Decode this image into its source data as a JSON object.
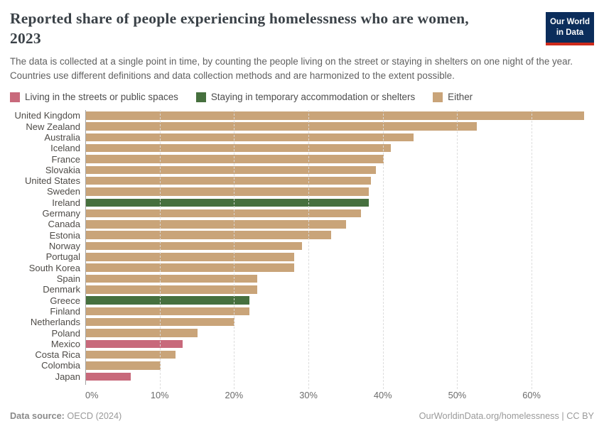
{
  "header": {
    "title": "Reported share of people experiencing homelessness who are women, 2023",
    "subtitle": "The data is collected at a single point in time, by counting the people living on the street or staying in shelters on one night of the year. Countries use different definitions and data collection methods and are harmonized to the extent possible.",
    "logo_line1": "Our World",
    "logo_line2": "in Data"
  },
  "legend": {
    "items": [
      {
        "label": "Living in the streets or public spaces",
        "key": "street"
      },
      {
        "label": "Staying in temporary accommodation or shelters",
        "key": "shelter"
      },
      {
        "label": "Either",
        "key": "either"
      }
    ]
  },
  "colors": {
    "street": "#C8697B",
    "shelter": "#46703E",
    "either": "#C9A479",
    "logo_bg": "#0B2D5B",
    "logo_accent": "#CE2A1B"
  },
  "chart_data": {
    "type": "bar",
    "orientation": "horizontal",
    "title": "Reported share of people experiencing homelessness who are women, 2023",
    "unit": "%",
    "xlabel": "",
    "ylabel": "",
    "xmax": 68.4,
    "grid": true,
    "tick_values": [
      0,
      10,
      20,
      30,
      40,
      50,
      60
    ],
    "tick_labels": [
      "0%",
      "10%",
      "20%",
      "30%",
      "40%",
      "50%",
      "60%"
    ],
    "categories": [
      "United Kingdom",
      "New Zealand",
      "Australia",
      "Iceland",
      "France",
      "Slovakia",
      "United States",
      "Sweden",
      "Ireland",
      "Germany",
      "Canada",
      "Estonia",
      "Norway",
      "Portugal",
      "South Korea",
      "Spain",
      "Denmark",
      "Greece",
      "Finland",
      "Netherlands",
      "Poland",
      "Mexico",
      "Costa Rica",
      "Colombia",
      "Japan"
    ],
    "values": [
      67,
      52.5,
      44,
      41,
      40,
      39,
      38.3,
      38,
      38,
      37,
      35,
      33,
      29,
      28,
      28,
      23,
      23,
      22,
      22,
      20,
      15,
      13,
      12,
      10,
      6
    ],
    "color_keys": [
      "either",
      "either",
      "either",
      "either",
      "either",
      "either",
      "either",
      "either",
      "shelter",
      "either",
      "either",
      "either",
      "either",
      "either",
      "either",
      "either",
      "either",
      "shelter",
      "either",
      "either",
      "either",
      "street",
      "either",
      "either",
      "street"
    ],
    "legend_position": "top"
  },
  "footer": {
    "source_label": "Data source:",
    "source_text": "OECD (2024)",
    "link_text": "OurWorldinData.org/homelessness",
    "separator": "|",
    "license_text": "CC BY"
  }
}
